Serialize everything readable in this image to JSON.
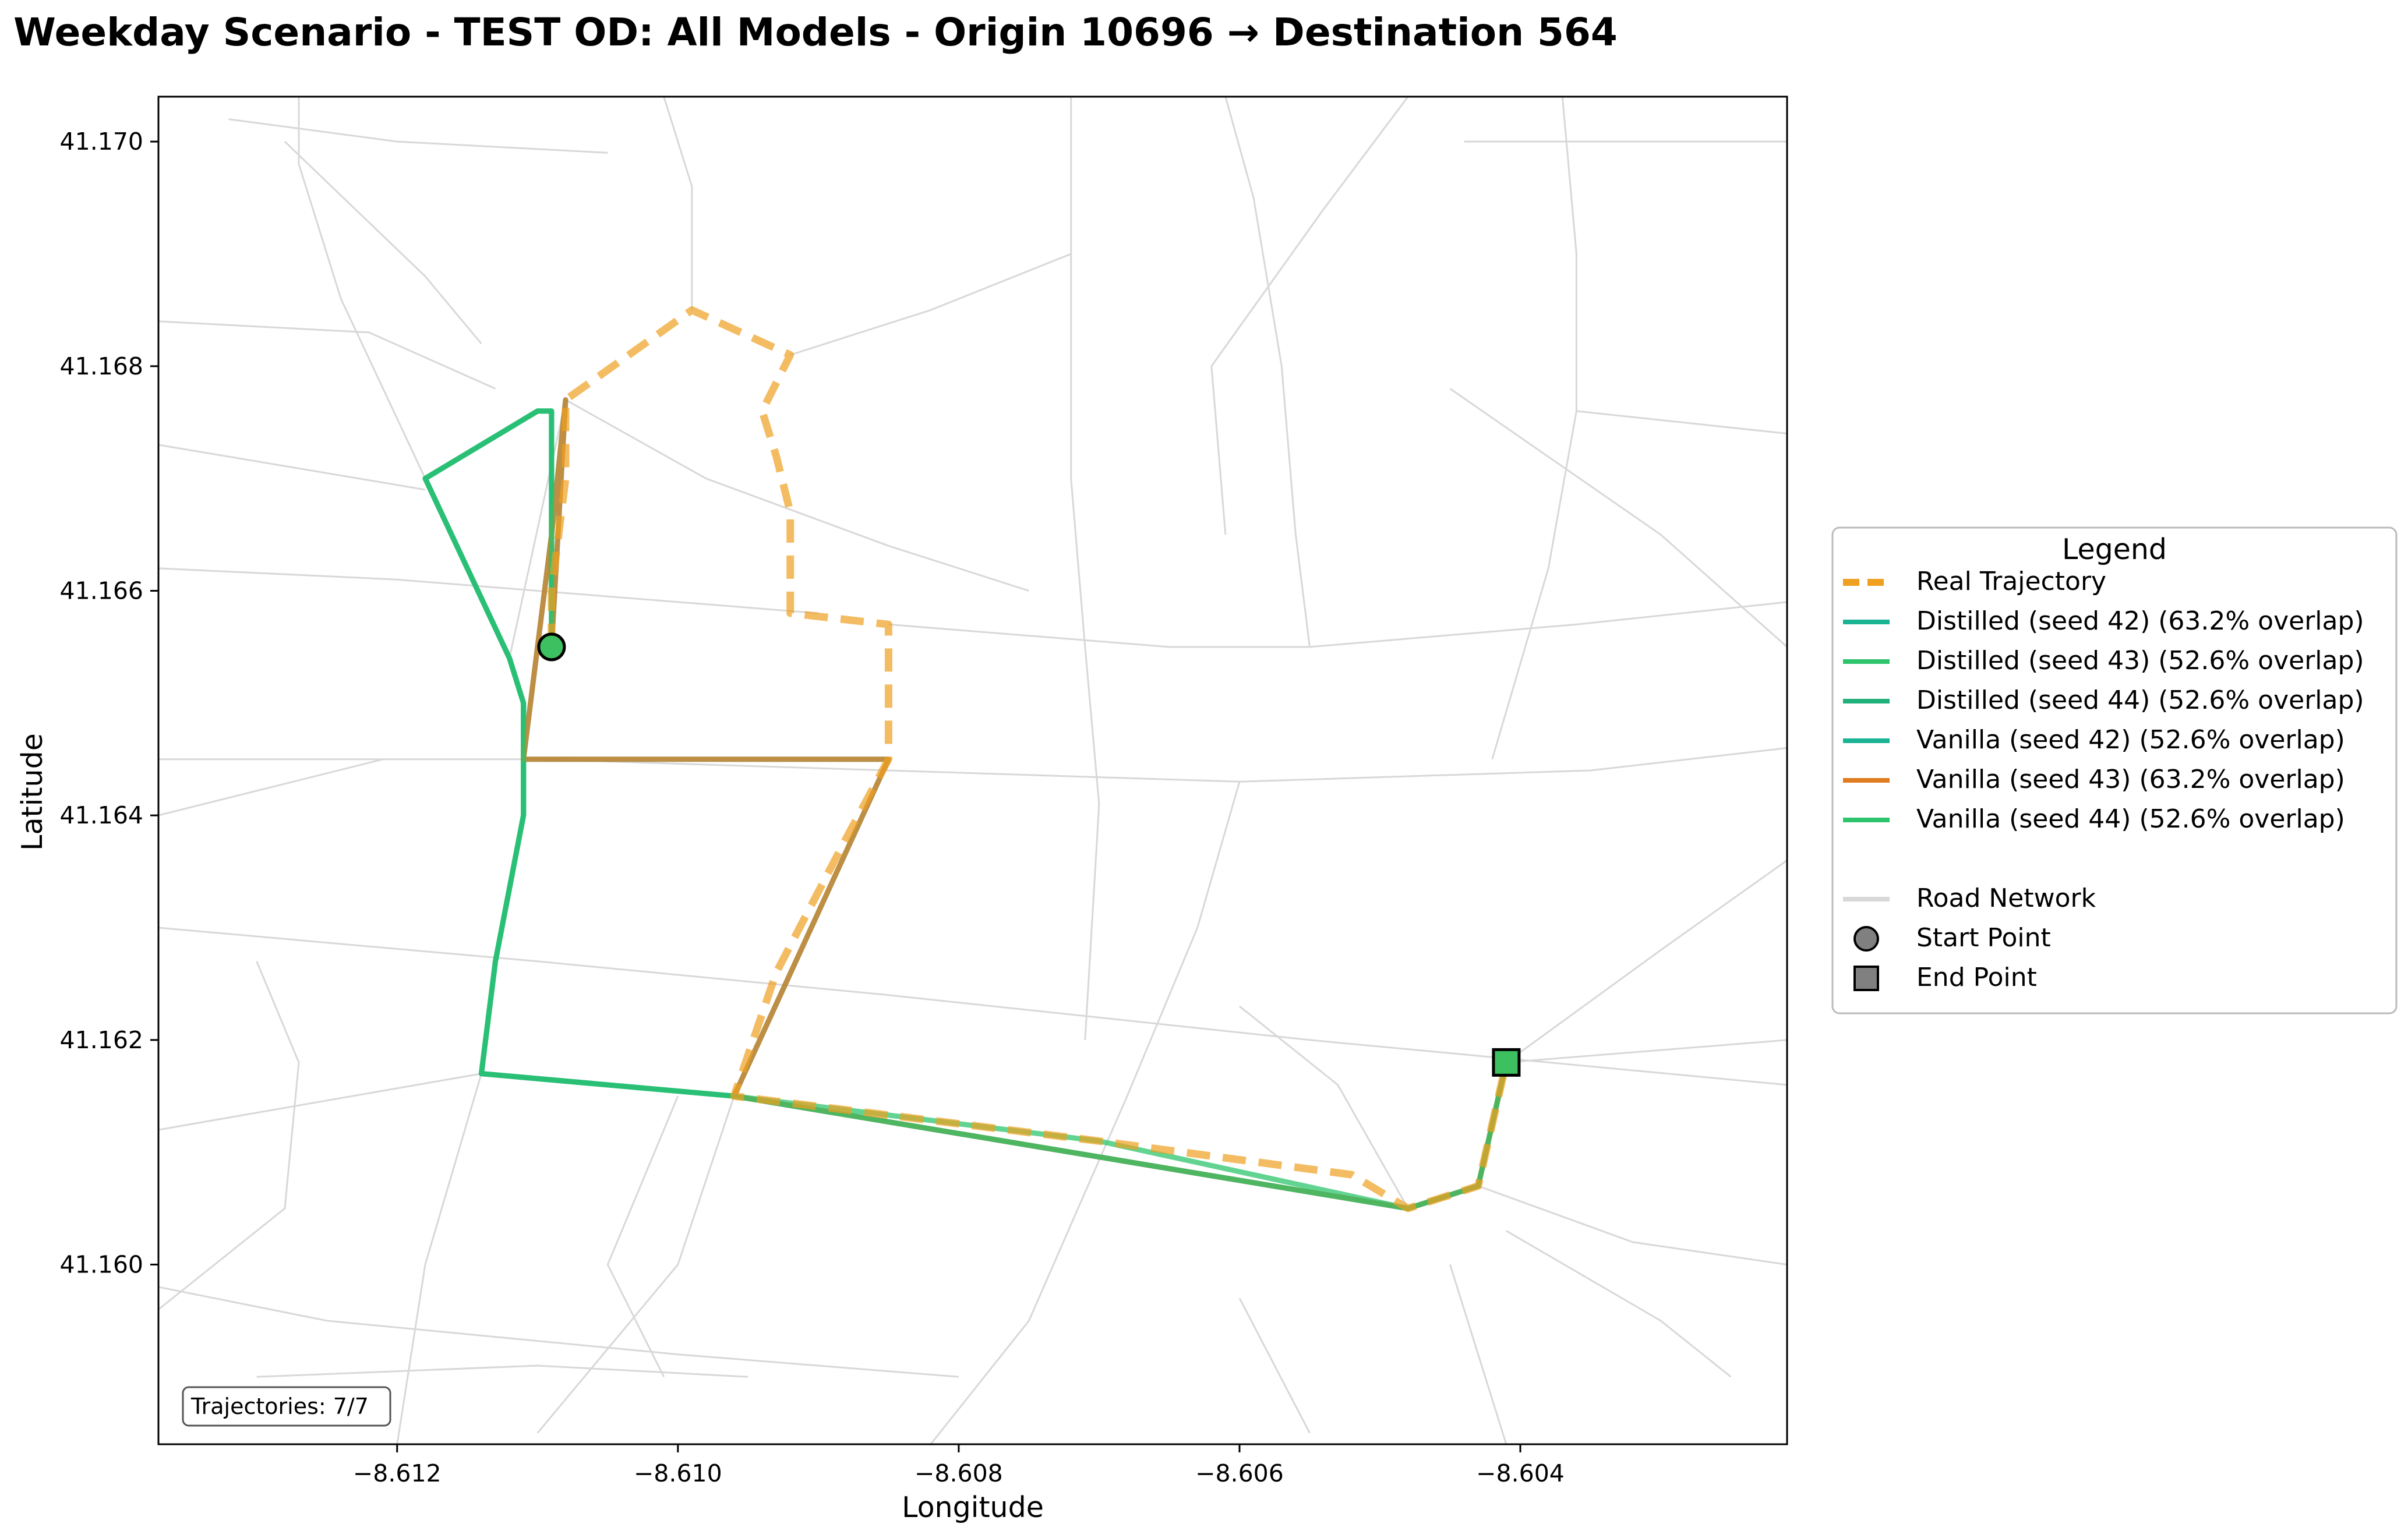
{
  "chart_data": {
    "type": "map",
    "title": "Weekday Scenario - TEST OD: All Models - Origin 10696 → Destination 564",
    "xlabel": "Longitude",
    "ylabel": "Latitude",
    "xlim": [
      -8.6137,
      -8.6021
    ],
    "ylim": [
      41.1584,
      41.1704
    ],
    "x_ticks": [
      -8.612,
      -8.61,
      -8.608,
      -8.606,
      -8.604
    ],
    "x_tick_labels": [
      "−8.612",
      "−8.610",
      "−8.608",
      "−8.606",
      "−8.604"
    ],
    "y_ticks": [
      41.16,
      41.162,
      41.164,
      41.166,
      41.168,
      41.17
    ],
    "y_tick_labels": [
      "41.160",
      "41.162",
      "41.164",
      "41.166",
      "41.168",
      "41.170"
    ],
    "grid": false,
    "legend_placement": "right-outside",
    "start_point": {
      "lon": -8.6109,
      "lat": 41.1655
    },
    "end_point": {
      "lon": -8.6041,
      "lat": 41.1618
    },
    "series": [
      {
        "name": "Real Trajectory",
        "style": "dashed",
        "color": "#f0a020",
        "points": [
          [
            -8.6109,
            41.1655
          ],
          [
            -8.6109,
            41.166
          ],
          [
            -8.6108,
            41.167
          ],
          [
            -8.6108,
            41.1677
          ],
          [
            -8.6099,
            41.1685
          ],
          [
            -8.6092,
            41.1681
          ],
          [
            -8.6094,
            41.1676
          ],
          [
            -8.6093,
            41.1672
          ],
          [
            -8.6092,
            41.1667
          ],
          [
            -8.6092,
            41.1658
          ],
          [
            -8.6085,
            41.1657
          ],
          [
            -8.6085,
            41.1645
          ],
          [
            -8.6088,
            41.1638
          ],
          [
            -8.6093,
            41.1626
          ],
          [
            -8.6096,
            41.1615
          ],
          [
            -8.607,
            41.1611
          ],
          [
            -8.6052,
            41.1608
          ],
          [
            -8.6048,
            41.1605
          ],
          [
            -8.6043,
            41.1607
          ],
          [
            -8.6041,
            41.1618
          ]
        ]
      },
      {
        "name": "Distilled (seed 42) (63.2% overlap)",
        "style": "solid",
        "color": "#1ab394",
        "points": [
          [
            -8.6109,
            41.1655
          ],
          [
            -8.6108,
            41.1677
          ],
          [
            -8.6109,
            41.1665
          ],
          [
            -8.6111,
            41.1645
          ],
          [
            -8.6085,
            41.1645
          ],
          [
            -8.6096,
            41.1615
          ],
          [
            -8.6048,
            41.1605
          ],
          [
            -8.6043,
            41.1607
          ],
          [
            -8.6041,
            41.1618
          ]
        ]
      },
      {
        "name": "Distilled (seed 43) (52.6% overlap)",
        "style": "solid",
        "color": "#2ec46c",
        "points": [
          [
            -8.6109,
            41.1655
          ],
          [
            -8.6109,
            41.1676
          ],
          [
            -8.611,
            41.1676
          ],
          [
            -8.6118,
            41.167
          ],
          [
            -8.6112,
            41.1654
          ],
          [
            -8.6111,
            41.165
          ],
          [
            -8.6111,
            41.1645
          ],
          [
            -8.6111,
            41.164
          ],
          [
            -8.6113,
            41.1627
          ],
          [
            -8.6114,
            41.1617
          ],
          [
            -8.6096,
            41.1615
          ],
          [
            -8.607,
            41.1611
          ],
          [
            -8.6048,
            41.1605
          ],
          [
            -8.6043,
            41.1607
          ],
          [
            -8.6041,
            41.1618
          ]
        ]
      },
      {
        "name": "Distilled (seed 44) (52.6% overlap)",
        "style": "solid",
        "color": "#22b07a",
        "points": [
          [
            -8.6109,
            41.1655
          ],
          [
            -8.6109,
            41.1676
          ],
          [
            -8.611,
            41.1676
          ],
          [
            -8.6118,
            41.167
          ],
          [
            -8.6112,
            41.1654
          ],
          [
            -8.6111,
            41.165
          ],
          [
            -8.6111,
            41.1645
          ],
          [
            -8.6111,
            41.164
          ],
          [
            -8.6113,
            41.1627
          ],
          [
            -8.6114,
            41.1617
          ],
          [
            -8.6096,
            41.1615
          ],
          [
            -8.6048,
            41.1605
          ],
          [
            -8.6043,
            41.1607
          ],
          [
            -8.6041,
            41.1618
          ]
        ]
      },
      {
        "name": "Vanilla (seed 42) (52.6% overlap)",
        "style": "solid",
        "color": "#1ab394",
        "points": [
          [
            -8.6109,
            41.1655
          ],
          [
            -8.6109,
            41.1676
          ],
          [
            -8.611,
            41.1676
          ],
          [
            -8.6118,
            41.167
          ],
          [
            -8.6112,
            41.1654
          ],
          [
            -8.6111,
            41.165
          ],
          [
            -8.6111,
            41.1645
          ],
          [
            -8.6111,
            41.164
          ],
          [
            -8.6113,
            41.1627
          ],
          [
            -8.6114,
            41.1617
          ],
          [
            -8.6096,
            41.1615
          ],
          [
            -8.6048,
            41.1605
          ],
          [
            -8.6043,
            41.1607
          ],
          [
            -8.6041,
            41.1618
          ]
        ]
      },
      {
        "name": "Vanilla (seed 43) (63.2% overlap)",
        "style": "solid",
        "color": "#e07b20",
        "points": [
          [
            -8.6109,
            41.1655
          ],
          [
            -8.6108,
            41.1677
          ],
          [
            -8.6109,
            41.1665
          ],
          [
            -8.6111,
            41.1645
          ],
          [
            -8.6085,
            41.1645
          ],
          [
            -8.6096,
            41.1615
          ],
          [
            -8.6048,
            41.1605
          ],
          [
            -8.6043,
            41.1607
          ],
          [
            -8.6041,
            41.1618
          ]
        ]
      },
      {
        "name": "Vanilla (seed 44) (52.6% overlap)",
        "style": "solid",
        "color": "#2ec46c",
        "points": [
          [
            -8.6109,
            41.1655
          ],
          [
            -8.6109,
            41.1676
          ],
          [
            -8.611,
            41.1676
          ],
          [
            -8.6118,
            41.167
          ],
          [
            -8.6112,
            41.1654
          ],
          [
            -8.6111,
            41.165
          ],
          [
            -8.6111,
            41.1645
          ],
          [
            -8.6111,
            41.164
          ],
          [
            -8.6113,
            41.1627
          ],
          [
            -8.6114,
            41.1617
          ],
          [
            -8.6096,
            41.1615
          ],
          [
            -8.6048,
            41.1605
          ],
          [
            -8.6043,
            41.1607
          ],
          [
            -8.6041,
            41.1618
          ]
        ]
      }
    ],
    "legend": {
      "title": "Legend",
      "entries": [
        {
          "label": "Real Trajectory",
          "kind": "dashed-line",
          "color": "#f0a020"
        },
        {
          "label": "Distilled (seed 42) (63.2% overlap)",
          "kind": "line",
          "color": "#1ab394"
        },
        {
          "label": "Distilled (seed 43) (52.6% overlap)",
          "kind": "line",
          "color": "#2ec46c"
        },
        {
          "label": "Distilled (seed 44) (52.6% overlap)",
          "kind": "line",
          "color": "#22b07a"
        },
        {
          "label": "Vanilla (seed 42) (52.6% overlap)",
          "kind": "line",
          "color": "#1ab394"
        },
        {
          "label": "Vanilla (seed 43) (63.2% overlap)",
          "kind": "line",
          "color": "#e07b20"
        },
        {
          "label": "Vanilla (seed 44) (52.6% overlap)",
          "kind": "line",
          "color": "#2ec46c"
        },
        {
          "label": "",
          "kind": "spacer",
          "color": ""
        },
        {
          "label": "Road Network",
          "kind": "line",
          "color": "#d8d8d8"
        },
        {
          "label": "Start Point",
          "kind": "circle",
          "color": "#808080"
        },
        {
          "label": "End Point",
          "kind": "square",
          "color": "#808080"
        }
      ]
    },
    "trajectory_count_label": "Trajectories: 7/7",
    "road_network": [
      [
        [
          -8.6137,
          41.1645
        ],
        [
          -8.611,
          41.1645
        ]
      ],
      [
        [
          -8.611,
          41.1645
        ],
        [
          -8.6085,
          41.1644
        ],
        [
          -8.606,
          41.1643
        ],
        [
          -8.6035,
          41.1644
        ],
        [
          -8.6021,
          41.1646
        ]
      ],
      [
        [
          -8.6137,
          41.163
        ],
        [
          -8.611,
          41.1627
        ],
        [
          -8.6085,
          41.1624
        ],
        [
          -8.6055,
          41.162
        ],
        [
          -8.6021,
          41.1616
        ]
      ],
      [
        [
          -8.6137,
          41.1612
        ],
        [
          -8.6114,
          41.1617
        ]
      ],
      [
        [
          -8.6137,
          41.164
        ],
        [
          -8.6121,
          41.1645
        ]
      ],
      [
        [
          -8.6137,
          41.1662
        ],
        [
          -8.612,
          41.1661
        ],
        [
          -8.611,
          41.166
        ],
        [
          -8.609,
          41.1658
        ]
      ],
      [
        [
          -8.6137,
          41.1673
        ],
        [
          -8.6118,
          41.1669
        ]
      ],
      [
        [
          -8.6137,
          41.1684
        ],
        [
          -8.6122,
          41.1683
        ],
        [
          -8.6113,
          41.1678
        ]
      ],
      [
        [
          -8.6132,
          41.1702
        ],
        [
          -8.612,
          41.17
        ],
        [
          -8.6105,
          41.1699
        ]
      ],
      [
        [
          -8.6128,
          41.17
        ],
        [
          -8.6123,
          41.1694
        ],
        [
          -8.6118,
          41.1688
        ],
        [
          -8.6114,
          41.1682
        ]
      ],
      [
        [
          -8.6108,
          41.1677
        ],
        [
          -8.6112,
          41.1654
        ]
      ],
      [
        [
          -8.6118,
          41.167
        ],
        [
          -8.6124,
          41.1686
        ],
        [
          -8.6127,
          41.1698
        ],
        [
          -8.6127,
          41.1704
        ]
      ],
      [
        [
          -8.6101,
          41.1704
        ],
        [
          -8.6099,
          41.1696
        ],
        [
          -8.6099,
          41.1685
        ]
      ],
      [
        [
          -8.6108,
          41.1677
        ],
        [
          -8.6098,
          41.167
        ],
        [
          -8.6085,
          41.1664
        ],
        [
          -8.6075,
          41.166
        ]
      ],
      [
        [
          -8.6092,
          41.1681
        ],
        [
          -8.6082,
          41.1685
        ],
        [
          -8.6072,
          41.169
        ]
      ],
      [
        [
          -8.6072,
          41.1704
        ],
        [
          -8.6072,
          41.169
        ],
        [
          -8.6072,
          41.167
        ],
        [
          -8.6071,
          41.1655
        ],
        [
          -8.607,
          41.1641
        ],
        [
          -8.6071,
          41.162
        ]
      ],
      [
        [
          -8.6085,
          41.1657
        ],
        [
          -8.6075,
          41.1656
        ],
        [
          -8.6065,
          41.1655
        ],
        [
          -8.6055,
          41.1655
        ],
        [
          -8.6036,
          41.1657
        ],
        [
          -8.6021,
          41.1659
        ]
      ],
      [
        [
          -8.6055,
          41.1655
        ],
        [
          -8.6056,
          41.1665
        ],
        [
          -8.6057,
          41.168
        ],
        [
          -8.6059,
          41.1695
        ],
        [
          -8.6061,
          41.1704
        ]
      ],
      [
        [
          -8.6048,
          41.1704
        ],
        [
          -8.6054,
          41.1694
        ],
        [
          -8.6062,
          41.168
        ],
        [
          -8.6061,
          41.1665
        ]
      ],
      [
        [
          -8.6044,
          41.17
        ],
        [
          -8.6035,
          41.17
        ],
        [
          -8.6021,
          41.17
        ]
      ],
      [
        [
          -8.6037,
          41.1704
        ],
        [
          -8.6036,
          41.169
        ],
        [
          -8.6036,
          41.1676
        ],
        [
          -8.6038,
          41.1662
        ],
        [
          -8.6042,
          41.1645
        ]
      ],
      [
        [
          -8.6036,
          41.1676
        ],
        [
          -8.6021,
          41.1674
        ]
      ],
      [
        [
          -8.6045,
          41.1678
        ],
        [
          -8.603,
          41.1665
        ],
        [
          -8.6021,
          41.1655
        ]
      ],
      [
        [
          -8.606,
          41.1643
        ],
        [
          -8.6063,
          41.163
        ],
        [
          -8.6068,
          41.1615
        ],
        [
          -8.6075,
          41.1595
        ],
        [
          -8.6082,
          41.1584
        ]
      ],
      [
        [
          -8.6096,
          41.1615
        ],
        [
          -8.61,
          41.16
        ],
        [
          -8.611,
          41.1585
        ]
      ],
      [
        [
          -8.6114,
          41.1617
        ],
        [
          -8.6118,
          41.16
        ],
        [
          -8.612,
          41.1584
        ]
      ],
      [
        [
          -8.6137,
          41.1596
        ],
        [
          -8.6128,
          41.1605
        ],
        [
          -8.6127,
          41.1618
        ],
        [
          -8.613,
          41.1627
        ]
      ],
      [
        [
          -8.6137,
          41.1598
        ],
        [
          -8.6125,
          41.1595
        ],
        [
          -8.61,
          41.1592
        ],
        [
          -8.608,
          41.159
        ]
      ],
      [
        [
          -8.613,
          41.159
        ],
        [
          -8.611,
          41.1591
        ],
        [
          -8.6095,
          41.159
        ]
      ],
      [
        [
          -8.606,
          41.1597
        ],
        [
          -8.6055,
          41.1585
        ]
      ],
      [
        [
          -8.6045,
          41.16
        ],
        [
          -8.6041,
          41.1584
        ]
      ],
      [
        [
          -8.6041,
          41.1603
        ],
        [
          -8.603,
          41.1595
        ],
        [
          -8.6025,
          41.159
        ]
      ],
      [
        [
          -8.6041,
          41.1618
        ],
        [
          -8.603,
          41.1628
        ],
        [
          -8.6021,
          41.1636
        ]
      ],
      [
        [
          -8.6043,
          41.1607
        ],
        [
          -8.6032,
          41.1602
        ],
        [
          -8.6021,
          41.16
        ]
      ],
      [
        [
          -8.6048,
          41.1605
        ],
        [
          -8.6053,
          41.1616
        ],
        [
          -8.606,
          41.1623
        ]
      ],
      [
        [
          -8.6021,
          41.162
        ],
        [
          -8.6041,
          41.1618
        ]
      ],
      [
        [
          -8.61,
          41.1615
        ],
        [
          -8.6105,
          41.16
        ],
        [
          -8.6101,
          41.159
        ]
      ]
    ]
  }
}
